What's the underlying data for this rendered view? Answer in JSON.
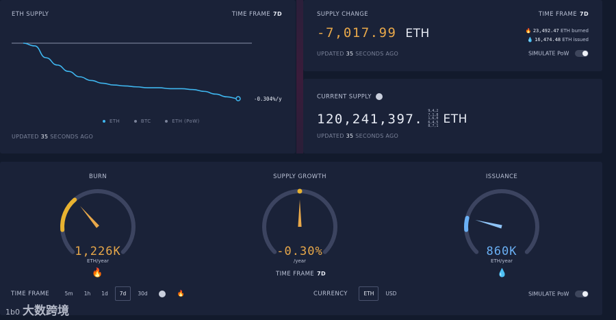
{
  "supply_chart": {
    "title": "ETH SUPPLY",
    "time_frame_label": "TIME FRAME",
    "time_frame_value": "7d",
    "end_label": "-0.304%/y",
    "legend": [
      "ETH",
      "BTC",
      "ETH (PoW)"
    ],
    "updated_prefix": "UPDATED",
    "updated_count": "35",
    "updated_suffix": "SECONDS AGO"
  },
  "chart_data": {
    "type": "line",
    "title": "ETH SUPPLY",
    "series": [
      {
        "name": "ETH",
        "values": [
          100,
          99.7,
          98.4,
          97.6,
          96.9,
          96.3,
          95.9,
          95.6,
          95.4,
          95.3,
          95.2,
          95.1,
          95.1,
          95.0,
          95.0,
          94.9,
          94.7,
          94.4,
          94.1,
          93.9
        ]
      }
    ],
    "reference_line": 100,
    "end_annotation": "-0.304%/y",
    "legend_placement": "bottom-center",
    "grid": false
  },
  "supply_change": {
    "title": "SUPPLY CHANGE",
    "time_frame_label": "TIME FRAME",
    "time_frame_value": "7d",
    "value": "-7,017.99",
    "unit": "ETH",
    "burned_value": "23,492.47",
    "burned_label": "ETH burned",
    "issued_value": "16,474.48",
    "issued_label": "ETH issued",
    "simulate_label": "SIMULATE PoW",
    "updated_prefix": "UPDATED",
    "updated_count": "35",
    "updated_suffix": "SECONDS AGO"
  },
  "current_supply": {
    "title": "CURRENT SUPPLY",
    "value": "120,241,397.",
    "decimals_lines": [
      "9,4,2",
      "7,1,8",
      "1,6,0",
      "6,4,5",
      "8,7,1"
    ],
    "unit": "ETH",
    "updated_prefix": "UPDATED",
    "updated_count": "35",
    "updated_suffix": "SECONDS AGO"
  },
  "gauges": {
    "burn": {
      "title": "BURN",
      "value": "1,226K",
      "unit": "ETH/year",
      "level": 0.35,
      "color": "#e8b230"
    },
    "growth": {
      "title": "SUPPLY GROWTH",
      "value": "-0.30%",
      "unit": "/year",
      "level": 0.5,
      "color": "#e8b230",
      "time_frame_label": "TIME FRAME",
      "time_frame_value": "7d"
    },
    "issuance": {
      "title": "ISSUANCE",
      "value": "860K",
      "unit": "ETH/year",
      "level": 0.22,
      "color": "#6ab0f5"
    }
  },
  "footer": {
    "time_frame_label": "TIME FRAME",
    "time_frames": [
      "5m",
      "1h",
      "1d",
      "7d",
      "30d"
    ],
    "active_time_frame": "7d",
    "currency_label": "CURRENCY",
    "currencies": [
      "ETH",
      "USD"
    ],
    "active_currency": "ETH",
    "simulate_label": "SIMULATE PoW"
  },
  "watermark": {
    "text": "大数跨境",
    "logo_text": "1b0"
  },
  "colors": {
    "accent_blue": "#3fb7f0",
    "gold": "#e8b230",
    "issuance_blue": "#6ab0f5"
  }
}
